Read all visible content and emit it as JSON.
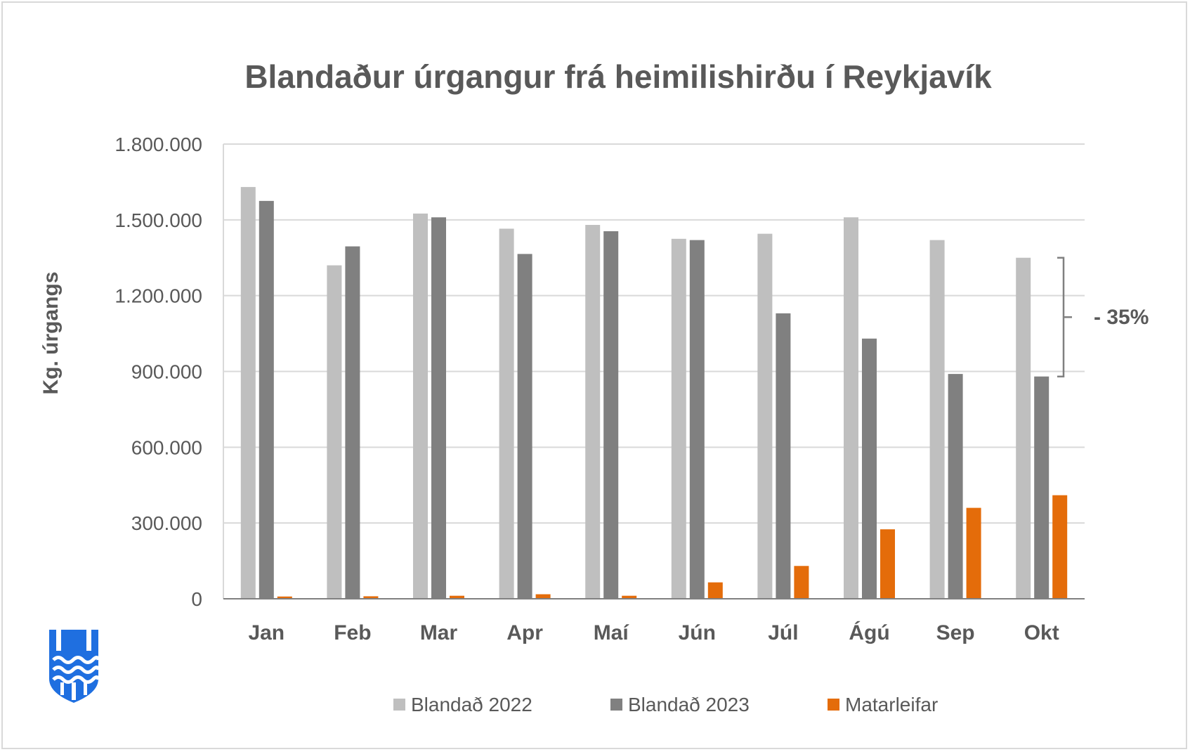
{
  "chart_data": {
    "type": "bar",
    "title": "Blandaður úrgangur frá heimilishirðu í Reykjavík",
    "xlabel": "",
    "ylabel": "Kg. úrgangs",
    "ylim": [
      0,
      1800000
    ],
    "yticks": [
      {
        "value": 0,
        "label": "0"
      },
      {
        "value": 300000,
        "label": "300.000"
      },
      {
        "value": 600000,
        "label": "600.000"
      },
      {
        "value": 900000,
        "label": "900.000"
      },
      {
        "value": 1200000,
        "label": "1.200.000"
      },
      {
        "value": 1500000,
        "label": "1.500.000"
      },
      {
        "value": 1800000,
        "label": "1.800.000"
      }
    ],
    "grid": true,
    "legend": "bottom",
    "categories": [
      "Jan",
      "Feb",
      "Mar",
      "Apr",
      "Maí",
      "Jún",
      "Júl",
      "Ágú",
      "Sep",
      "Okt"
    ],
    "series": [
      {
        "name": "Blandað 2022",
        "color": "#bfbfbf",
        "values": [
          1630000,
          1320000,
          1525000,
          1465000,
          1480000,
          1425000,
          1445000,
          1510000,
          1420000,
          1350000
        ]
      },
      {
        "name": "Blandað 2023",
        "color": "#808080",
        "values": [
          1575000,
          1395000,
          1510000,
          1365000,
          1455000,
          1420000,
          1130000,
          1030000,
          890000,
          880000
        ]
      },
      {
        "name": "Matarleifar",
        "color": "#e46c0a",
        "values": [
          9000,
          10000,
          12000,
          18000,
          12000,
          65000,
          130000,
          275000,
          360000,
          410000
        ]
      }
    ],
    "annotations": [
      {
        "text": "- 35%",
        "category": "Okt",
        "from": 1350000,
        "to": 880000
      }
    ]
  },
  "logo": {
    "name": "Reykjavík coat of arms",
    "color": "#1f6fe0"
  }
}
